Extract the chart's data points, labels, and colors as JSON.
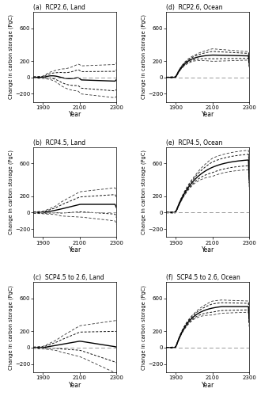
{
  "titles": [
    [
      "(a)",
      "RCP2.6, Land"
    ],
    [
      "(b)",
      "RCP4.5, Land"
    ],
    [
      "(c)",
      "SCP4.5 to 2.6, Land"
    ],
    [
      "(d)",
      "RCP2.6, Ocean"
    ],
    [
      "(e)",
      "RCP4.5, Ocean"
    ],
    [
      "(f)",
      "SCP4.5 to 2.6, Ocean"
    ]
  ],
  "ylabel": "Change in carbon storage (PgC)",
  "xlabel": "Year",
  "xlim": [
    1850,
    2300
  ],
  "xticks": [
    1900,
    2100,
    2300
  ],
  "ylim": [
    -300,
    800
  ],
  "yticks": [
    -200,
    0,
    200,
    600
  ],
  "hline_color": "#999999",
  "line_color": "#000000",
  "background": "#ffffff"
}
